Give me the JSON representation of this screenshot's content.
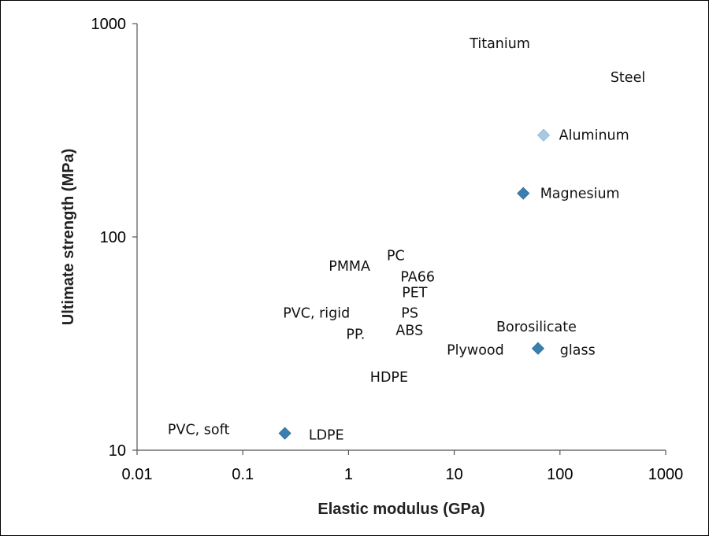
{
  "chart_data": {
    "type": "scatter",
    "xlabel": "Elastic modulus (GPa)",
    "ylabel": "Ultimate strength (MPa)",
    "xscale": "log",
    "yscale": "log",
    "xlim": [
      0.01,
      1000
    ],
    "ylim": [
      10,
      1000
    ],
    "grid": false,
    "legend": "none",
    "marker_color": "#3a7fb0",
    "marker_color_light": "#a9c9e3",
    "xticks": [
      {
        "value": 0.01,
        "label": "0.01"
      },
      {
        "value": 0.1,
        "label": "0.1"
      },
      {
        "value": 1,
        "label": "1"
      },
      {
        "value": 10,
        "label": "10"
      },
      {
        "value": 100,
        "label": "100"
      },
      {
        "value": 1000,
        "label": "1000"
      }
    ],
    "yticks": [
      {
        "value": 10,
        "label": "10"
      },
      {
        "value": 100,
        "label": "100"
      },
      {
        "value": 1000,
        "label": "1000"
      }
    ],
    "points": [
      {
        "label": "LDPE",
        "x": 0.25,
        "y": 12,
        "marker": true,
        "light": false
      },
      {
        "label": "Magnesium",
        "x": 45,
        "y": 160,
        "marker": true,
        "light": false
      },
      {
        "label": "Aluminum",
        "x": 70,
        "y": 300,
        "marker": true,
        "light": true
      },
      {
        "label": "glass",
        "x": 62,
        "y": 30,
        "marker": true,
        "light": false
      }
    ],
    "annotations": [
      {
        "text": "Titanium",
        "x": 14,
        "y": 810
      },
      {
        "text": "Steel",
        "x": 300,
        "y": 560
      },
      {
        "text": "Aluminum",
        "x": 98,
        "y": 300
      },
      {
        "text": "Magnesium",
        "x": 65,
        "y": 160
      },
      {
        "text": "PC",
        "x": 2.3,
        "y": 82
      },
      {
        "text": "PMMA",
        "x": 0.65,
        "y": 73
      },
      {
        "text": "PA66",
        "x": 3.1,
        "y": 65
      },
      {
        "text": "PET",
        "x": 3.2,
        "y": 55
      },
      {
        "text": "PVC, rigid",
        "x": 0.24,
        "y": 44
      },
      {
        "text": "PS",
        "x": 3.15,
        "y": 44
      },
      {
        "text": "ABS",
        "x": 2.8,
        "y": 36.5
      },
      {
        "text": "PP.",
        "x": 0.95,
        "y": 35
      },
      {
        "text": "Borosilicate",
        "x": 25,
        "y": 38
      },
      {
        "text": "glass",
        "x": 100,
        "y": 29.5
      },
      {
        "text": "Plywood",
        "x": 8.5,
        "y": 29.5
      },
      {
        "text": "HDPE",
        "x": 1.6,
        "y": 22
      },
      {
        "text": "PVC, soft",
        "x": 0.0195,
        "y": 12.5
      },
      {
        "text": "LDPE",
        "x": 0.42,
        "y": 11.8
      }
    ]
  }
}
